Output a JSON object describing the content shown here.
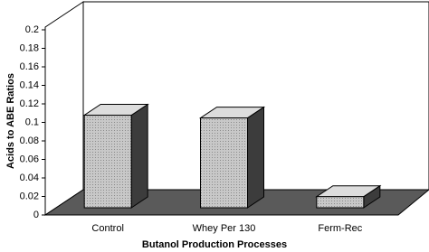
{
  "chart_data": {
    "type": "bar3d",
    "x_label": "Butanol Production Processes",
    "y_label": "Acids to ABE Ratios",
    "categories": [
      "Control",
      "Whey Per 130",
      "Ferm-Rec"
    ],
    "values": [
      0.1,
      0.097,
      0.012
    ],
    "color": "#b4b4b4",
    "ylim": [
      0,
      0.2
    ],
    "yticks": [
      0,
      0.02,
      0.04,
      0.06,
      0.08,
      0.1,
      0.12,
      0.14,
      0.16,
      0.18,
      0.2
    ]
  }
}
